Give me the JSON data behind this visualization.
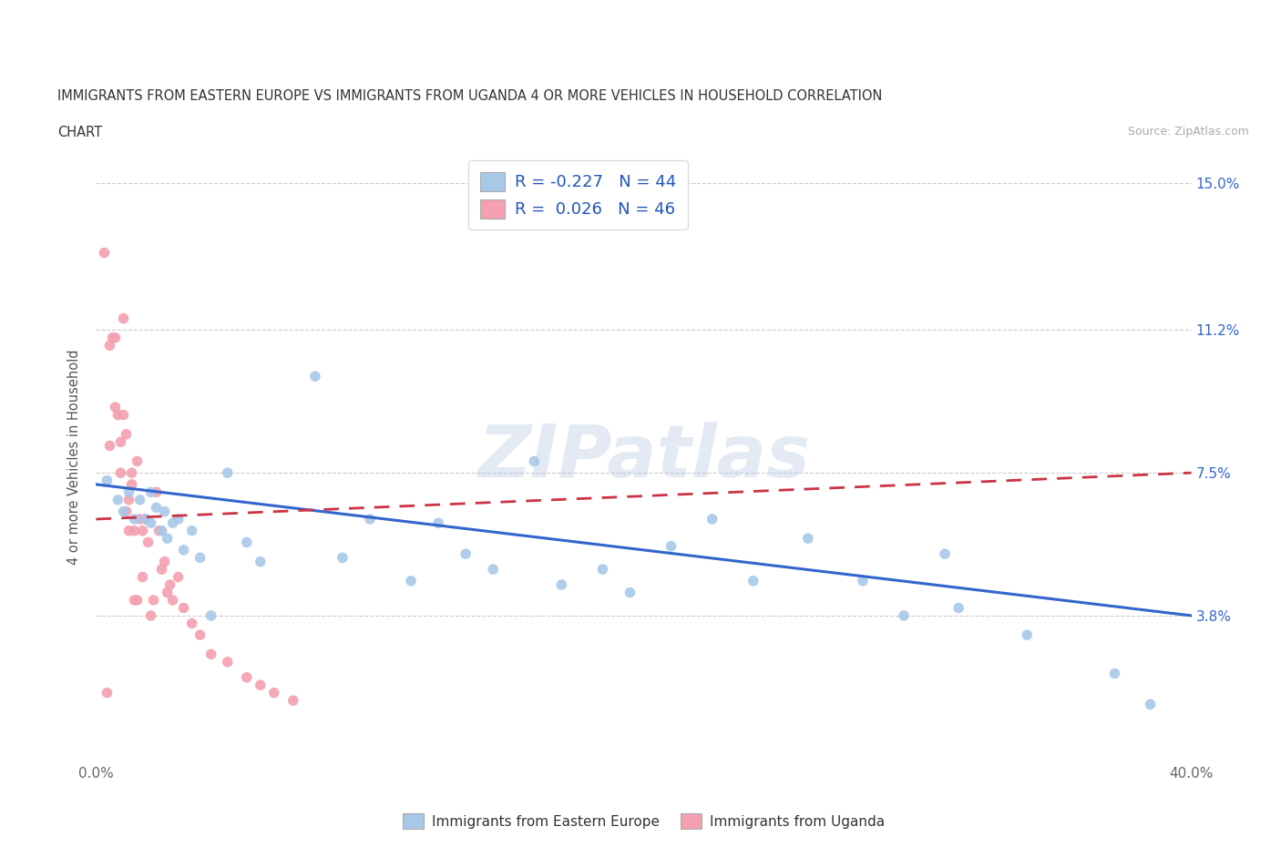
{
  "title_line1": "IMMIGRANTS FROM EASTERN EUROPE VS IMMIGRANTS FROM UGANDA 4 OR MORE VEHICLES IN HOUSEHOLD CORRELATION",
  "title_line2": "CHART",
  "source": "Source: ZipAtlas.com",
  "ylabel": "4 or more Vehicles in Household",
  "xlim": [
    0.0,
    0.4
  ],
  "ylim": [
    0.0,
    0.158
  ],
  "xticks": [
    0.0,
    0.05,
    0.1,
    0.15,
    0.2,
    0.25,
    0.3,
    0.35,
    0.4
  ],
  "xticklabels": [
    "0.0%",
    "",
    "",
    "",
    "",
    "",
    "",
    "",
    "40.0%"
  ],
  "ytick_positions": [
    0.038,
    0.075,
    0.112,
    0.15
  ],
  "ytick_labels": [
    "3.8%",
    "7.5%",
    "11.2%",
    "15.0%"
  ],
  "blue_R": -0.227,
  "blue_N": 44,
  "pink_R": 0.026,
  "pink_N": 46,
  "blue_scatter_color": "#a8c8e8",
  "pink_scatter_color": "#f4a0b0",
  "blue_line_color": "#3366cc",
  "pink_line_color": "#cc3344",
  "legend_label_blue": "Immigrants from Eastern Europe",
  "legend_label_pink": "Immigrants from Uganda",
  "watermark": "ZIPatlas",
  "blue_scatter_x": [
    0.004,
    0.008,
    0.01,
    0.012,
    0.014,
    0.016,
    0.018,
    0.02,
    0.02,
    0.022,
    0.024,
    0.025,
    0.026,
    0.028,
    0.03,
    0.032,
    0.035,
    0.038,
    0.042,
    0.048,
    0.055,
    0.06,
    0.08,
    0.09,
    0.1,
    0.115,
    0.125,
    0.135,
    0.145,
    0.16,
    0.17,
    0.185,
    0.195,
    0.21,
    0.225,
    0.24,
    0.26,
    0.28,
    0.295,
    0.31,
    0.315,
    0.34,
    0.372,
    0.385
  ],
  "blue_scatter_y": [
    0.073,
    0.068,
    0.065,
    0.07,
    0.063,
    0.068,
    0.063,
    0.07,
    0.062,
    0.066,
    0.06,
    0.065,
    0.058,
    0.062,
    0.063,
    0.055,
    0.06,
    0.053,
    0.038,
    0.075,
    0.057,
    0.052,
    0.1,
    0.053,
    0.063,
    0.047,
    0.062,
    0.054,
    0.05,
    0.078,
    0.046,
    0.05,
    0.044,
    0.056,
    0.063,
    0.047,
    0.058,
    0.047,
    0.038,
    0.054,
    0.04,
    0.033,
    0.023,
    0.015
  ],
  "pink_scatter_x": [
    0.003,
    0.004,
    0.005,
    0.005,
    0.006,
    0.007,
    0.007,
    0.008,
    0.009,
    0.009,
    0.01,
    0.01,
    0.011,
    0.011,
    0.012,
    0.012,
    0.013,
    0.013,
    0.014,
    0.014,
    0.015,
    0.015,
    0.016,
    0.017,
    0.017,
    0.018,
    0.019,
    0.02,
    0.021,
    0.022,
    0.023,
    0.024,
    0.025,
    0.026,
    0.027,
    0.028,
    0.03,
    0.032,
    0.035,
    0.038,
    0.042,
    0.048,
    0.055,
    0.06,
    0.065,
    0.072
  ],
  "pink_scatter_y": [
    0.132,
    0.018,
    0.108,
    0.082,
    0.11,
    0.11,
    0.092,
    0.09,
    0.083,
    0.075,
    0.115,
    0.09,
    0.085,
    0.065,
    0.068,
    0.06,
    0.075,
    0.072,
    0.06,
    0.042,
    0.078,
    0.042,
    0.063,
    0.048,
    0.06,
    0.063,
    0.057,
    0.038,
    0.042,
    0.07,
    0.06,
    0.05,
    0.052,
    0.044,
    0.046,
    0.042,
    0.048,
    0.04,
    0.036,
    0.033,
    0.028,
    0.026,
    0.022,
    0.02,
    0.018,
    0.016
  ],
  "blue_line_y0": 0.072,
  "blue_line_y1": 0.038,
  "pink_line_y0": 0.063,
  "pink_line_y1": 0.075
}
